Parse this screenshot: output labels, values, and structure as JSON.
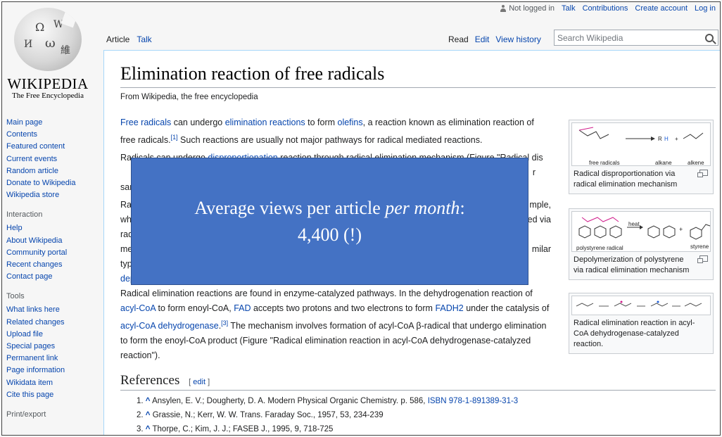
{
  "personal": {
    "not_logged_in": "Not logged in",
    "talk": "Talk",
    "contributions": "Contributions",
    "create_account": "Create account",
    "log_in": "Log in"
  },
  "logo": {
    "wordmark": "Wikipedia",
    "wordmark_display": "WIKIPEDIA",
    "tagline": "The Free Encyclopedia",
    "glyphs": [
      "Ω",
      "W",
      "И",
      "ω",
      "維",
      "W"
    ]
  },
  "tabs": {
    "article": "Article",
    "talk": "Talk",
    "read": "Read",
    "edit": "Edit",
    "view_history": "View history"
  },
  "search": {
    "placeholder": "Search Wikipedia"
  },
  "sidebar": {
    "navigation": [
      "Main page",
      "Contents",
      "Featured content",
      "Current events",
      "Random article",
      "Donate to Wikipedia",
      "Wikipedia store"
    ],
    "interaction_heading": "Interaction",
    "interaction": [
      "Help",
      "About Wikipedia",
      "Community portal",
      "Recent changes",
      "Contact page"
    ],
    "tools_heading": "Tools",
    "tools": [
      "What links here",
      "Related changes",
      "Upload file",
      "Special pages",
      "Permanent link",
      "Page information",
      "Wikidata item",
      "Cite this page"
    ],
    "print_heading": "Print/export"
  },
  "article": {
    "title": "Elimination reaction of free radicals",
    "site_sub": "From Wikipedia, the free encyclopedia",
    "p1": {
      "link1": "Free radicals",
      "t1": " can undergo ",
      "link2": "elimination reactions",
      "t2": " to form ",
      "link3": "olefins",
      "t3": ", a reaction known as elimination reaction of free radicals.",
      "ref": "[1]",
      "t4": " Such reactions are usually not major pathways for radical mediated reactions."
    },
    "p2": {
      "t1": "Radicals can undergo ",
      "link1": "disproportionation",
      "t2": " reaction through radical elimination mechanism (Figure \"Radical dis",
      "t3": "r",
      "t4": "san"
    },
    "p3": {
      "line1_start": "Ra",
      "line1_end": "mple,",
      "line2_start": "wh",
      "line2_end": "ted via",
      "line3_start": "rad",
      "line4_start": "me",
      "line4_end": "milar",
      "line5_start": "typ",
      "line6_start": "dep"
    },
    "p4": {
      "t1": "Radical elimination reactions are found in enzyme-catalyzed pathways. In the dehydrogenation reaction of ",
      "link1": "acyl-CoA",
      "t2": " to form enoyl-CoA, ",
      "link2": "FAD",
      "t3": " accepts two protons and two electrons to form ",
      "link3": "FADH2",
      "t4": " under the catalysis of ",
      "link4": "acyl-CoA dehydrogenase",
      "ref": "[3]",
      "t5": " The mechanism involves formation of acyl-CoA β-radical that undergo elimination to form the enoyl-CoA product (Figure \"Radical elimination reaction in acyl-CoA dehydrogenase-catalyzed reaction\")."
    }
  },
  "thumbs": [
    {
      "caption": "Radical disproportionation via radical elimination mechanism",
      "labels": [
        "free radicals",
        "alkane",
        "alkene"
      ]
    },
    {
      "caption": "Depolymerization of polystyrene via radical elimination mechanism",
      "labels": [
        "polystyrene radical",
        "heat",
        "styrene"
      ]
    },
    {
      "caption": "Radical elimination reaction in acyl-CoA dehydrogenase-catalyzed reaction.",
      "labels": []
    }
  ],
  "references": {
    "heading": "References",
    "edit": "edit",
    "items": [
      {
        "num": "1.",
        "caret": "^",
        "text": " Ansylen, E. V.; Dougherty, D. A. Modern Physical Organic Chemistry. p. 586, ",
        "link": "ISBN 978-1-891389-31-3"
      },
      {
        "num": "2.",
        "caret": "^",
        "text": " Grassie, N.; Kerr, W. W. Trans. Faraday Soc., 1957, 53, 234-239",
        "link": ""
      },
      {
        "num": "3.",
        "caret": "^",
        "text": " Thorpe, C.; Kim, J. J.; FASEB J., 1995, 9, 718-725",
        "link": ""
      }
    ]
  },
  "overlay": {
    "line1_prefix": "Average views per article ",
    "line1_em": "per month",
    "line1_suffix": ":",
    "line2": "4,400 (!)"
  }
}
